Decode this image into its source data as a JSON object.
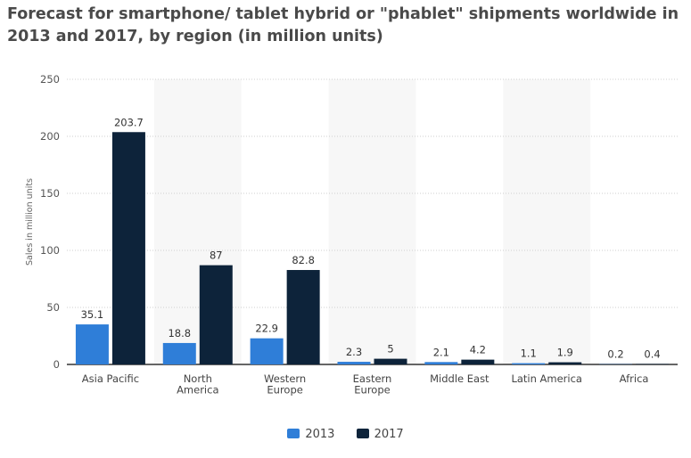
{
  "chart_data": {
    "type": "bar",
    "title": "Forecast for smartphone/ tablet hybrid or \"phablet\" shipments worldwide in 2013 and 2017, by region (in million units)",
    "xlabel": "",
    "ylabel": "Sales in million units",
    "ylim": [
      0,
      250
    ],
    "yticks": [
      0,
      50,
      100,
      150,
      200,
      250
    ],
    "grid": true,
    "legend": "bottom",
    "categories": [
      [
        "Asia Pacific"
      ],
      [
        "North",
        "America"
      ],
      [
        "Western",
        "Europe"
      ],
      [
        "Eastern",
        "Europe"
      ],
      [
        "Middle East"
      ],
      [
        "Latin America"
      ],
      [
        "Africa"
      ]
    ],
    "series": [
      {
        "name": "2013",
        "color": "#2f7ed8",
        "values": [
          35.1,
          18.8,
          22.9,
          2.3,
          2.1,
          1.1,
          0.2
        ]
      },
      {
        "name": "2017",
        "color": "#0d233a",
        "values": [
          203.7,
          87,
          82.8,
          5,
          4.2,
          1.9,
          0.4
        ]
      }
    ]
  }
}
